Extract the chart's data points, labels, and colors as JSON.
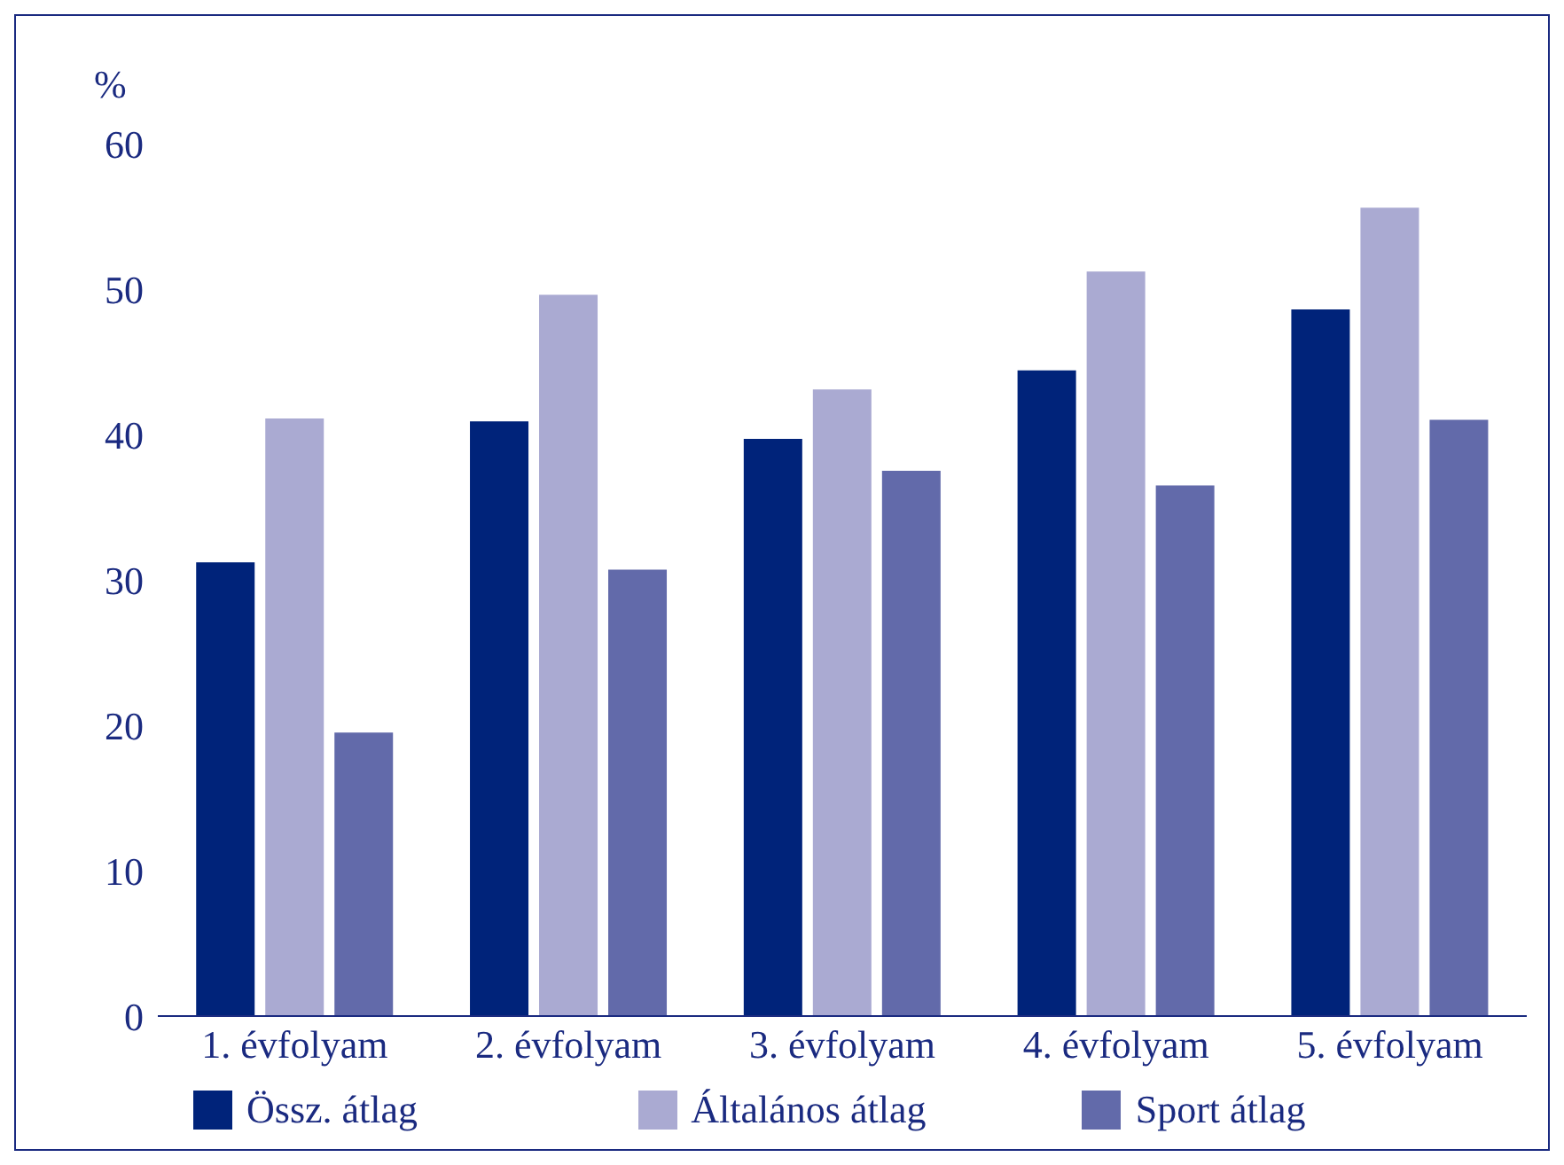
{
  "chart_data": {
    "type": "bar",
    "ylabel": "%",
    "categories": [
      "1. évfolyam",
      "2. évfolyam",
      "3. évfolyam",
      "4. évfolyam",
      "5. évfolyam"
    ],
    "series": [
      {
        "name": "Össz. átlag",
        "color": "#00237a",
        "values": [
          31.2,
          40.9,
          39.7,
          44.4,
          48.6
        ]
      },
      {
        "name": "Általános átlag",
        "color": "#aaaad2",
        "values": [
          41.1,
          49.6,
          43.1,
          51.2,
          55.6
        ]
      },
      {
        "name": "Sport átlag",
        "color": "#626aaa",
        "values": [
          19.5,
          30.7,
          37.5,
          36.5,
          41.0
        ]
      }
    ],
    "ylim": [
      0,
      60
    ],
    "yticks": [
      0,
      10,
      20,
      30,
      40,
      50,
      60
    ],
    "grid": false,
    "legend": "bottom"
  }
}
